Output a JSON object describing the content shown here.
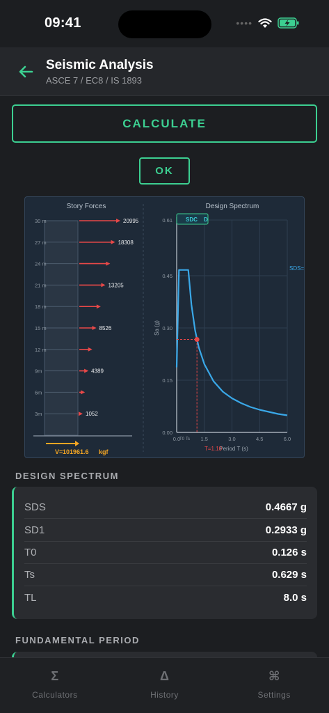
{
  "status": {
    "time": "09:41"
  },
  "header": {
    "title": "Seismic Analysis",
    "subtitle": "ASCE 7 / EC8 / IS 1893"
  },
  "actions": {
    "calculate_label": "CALCULATE",
    "ok_label": "OK"
  },
  "chart_data": [
    {
      "type": "bar",
      "title": "Story Forces",
      "categories": [
        "30 m",
        "27 m",
        "24 m",
        "21 m",
        "18 m",
        "15 m",
        "12 m",
        "9m",
        "6m",
        "3m"
      ],
      "values": [
        20995,
        18308,
        15700,
        13205,
        10800,
        8526,
        6400,
        4389,
        2600,
        1052
      ],
      "data_labels": [
        "20995",
        "18308",
        "",
        "13205",
        "",
        "8526",
        "",
        "4389",
        "",
        "1052"
      ],
      "base_shear_label": "V=",
      "base_shear_value": "101961.6",
      "unit": "kgf"
    },
    {
      "type": "line",
      "title": "Design Spectrum",
      "xlabel": "Period T (s)",
      "ylabel": "Sa (g)",
      "xlim": [
        0,
        6.0
      ],
      "ylim": [
        0,
        0.61
      ],
      "x_ticks": [
        "0.0",
        "1.5",
        "3.0",
        "4.5",
        "6.0"
      ],
      "y_ticks": [
        "0.00",
        "0.15",
        "0.30",
        "0.45",
        "0.61"
      ],
      "t0_label": "T0",
      "ts_label": "Ts",
      "series": [
        {
          "x": [
            0,
            0.126,
            0.629,
            0.8,
            1.0,
            1.2,
            1.5,
            2.0,
            2.5,
            3.0,
            3.5,
            4.0,
            4.5,
            5.0,
            5.5,
            6.0
          ],
          "y": [
            0.187,
            0.4667,
            0.4667,
            0.367,
            0.293,
            0.244,
            0.196,
            0.147,
            0.117,
            0.098,
            0.084,
            0.073,
            0.065,
            0.059,
            0.053,
            0.049
          ]
        }
      ],
      "point": {
        "x": 1.1,
        "y": 0.267
      },
      "point_label": "T=1.10",
      "sds_label": "SDS=",
      "sdc_label": "SDC",
      "sdc_value": "D"
    }
  ],
  "design_spectrum": {
    "title": "DESIGN SPECTRUM",
    "rows": [
      {
        "label": "SDS",
        "value": "0.4667 g"
      },
      {
        "label": "SD1",
        "value": "0.2933 g"
      },
      {
        "label": "T0",
        "value": "0.126 s"
      },
      {
        "label": "Ts",
        "value": "0.629 s"
      },
      {
        "label": "TL",
        "value": "8.0 s"
      }
    ]
  },
  "fundamental_period": {
    "title": "FUNDAMENTAL PERIOD"
  },
  "nav": {
    "items": [
      {
        "icon": "Σ",
        "label": "Calculators"
      },
      {
        "icon": "Δ",
        "label": "History"
      },
      {
        "icon": "⌘",
        "label": "Settings"
      }
    ]
  },
  "colors": {
    "accent": "#3ccf91",
    "force": "#e84848",
    "spectrum": "#3aa8e8",
    "base": "#f5a623"
  }
}
